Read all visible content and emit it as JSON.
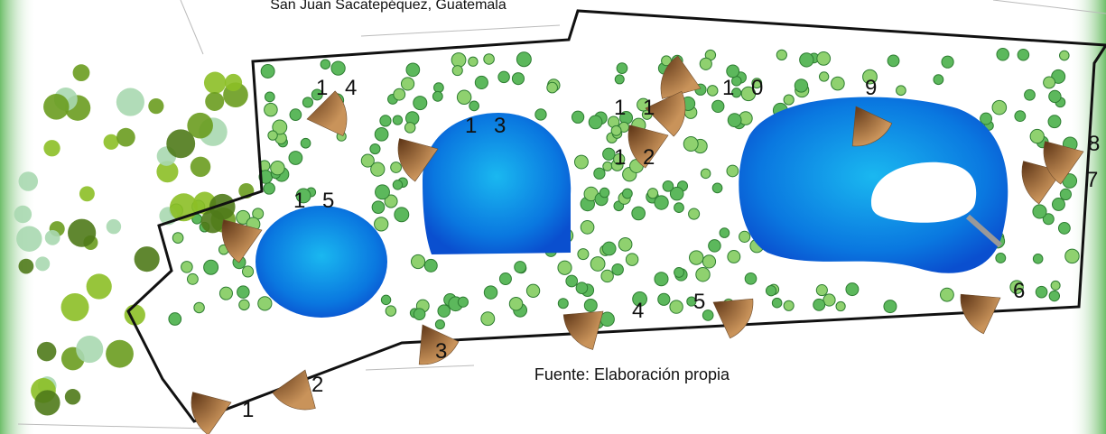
{
  "header": {
    "location": "San Juan Sacatepéquez, Guatemala"
  },
  "viewpoints": [
    {
      "label": "1"
    },
    {
      "label": "2"
    },
    {
      "label": "3"
    },
    {
      "label": "4"
    },
    {
      "label": "5"
    },
    {
      "label": "6"
    },
    {
      "label": "7"
    },
    {
      "label": "8"
    },
    {
      "label": "9"
    },
    {
      "label": "1 0"
    },
    {
      "label": "1 1"
    },
    {
      "label": "1 2"
    },
    {
      "label": "1 3"
    },
    {
      "label": "1 4"
    },
    {
      "label": "1 5"
    }
  ],
  "source": "Fuente: Elaboración  propia"
}
